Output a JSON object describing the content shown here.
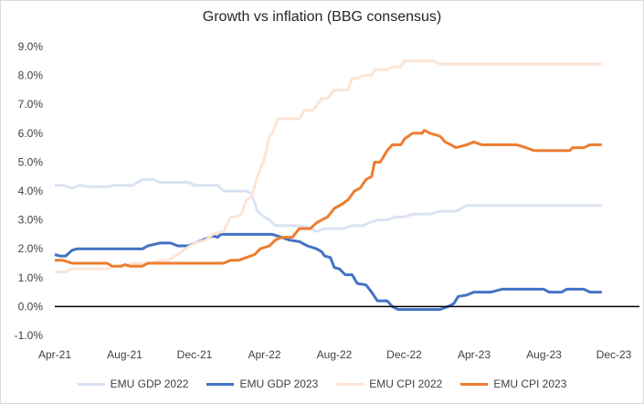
{
  "chart_data": {
    "type": "line",
    "title": "Growth vs inflation (BBG consensus)",
    "xlabel": "",
    "ylabel": "",
    "x_ticks": [
      "Apr-21",
      "Aug-21",
      "Dec-21",
      "Apr-22",
      "Aug-22",
      "Dec-22",
      "Apr-23",
      "Aug-23",
      "Dec-23"
    ],
    "y_ticks": [
      "-1.0%",
      "0.0%",
      "1.0%",
      "2.0%",
      "3.0%",
      "4.0%",
      "5.0%",
      "6.0%",
      "7.0%",
      "8.0%",
      "9.0%"
    ],
    "ylim": [
      -1.0,
      9.0
    ],
    "xlim": [
      "2021-04-01",
      "2023-12-01"
    ],
    "grid": false,
    "legend_position": "bottom",
    "series": [
      {
        "name": "EMU GDP 2022",
        "color": "#dae3f3",
        "points": [
          [
            "2021-04-01",
            4.2
          ],
          [
            "2021-04-15",
            4.2
          ],
          [
            "2021-05-01",
            4.1
          ],
          [
            "2021-05-15",
            4.2
          ],
          [
            "2021-06-01",
            4.15
          ],
          [
            "2021-07-01",
            4.15
          ],
          [
            "2021-07-15",
            4.2
          ],
          [
            "2021-08-15",
            4.2
          ],
          [
            "2021-09-01",
            4.4
          ],
          [
            "2021-09-20",
            4.4
          ],
          [
            "2021-10-01",
            4.3
          ],
          [
            "2021-11-01",
            4.3
          ],
          [
            "2021-11-20",
            4.3
          ],
          [
            "2021-12-01",
            4.2
          ],
          [
            "2022-01-01",
            4.2
          ],
          [
            "2022-01-10",
            4.2
          ],
          [
            "2022-01-20",
            4.0
          ],
          [
            "2022-03-01",
            4.0
          ],
          [
            "2022-03-10",
            3.9
          ],
          [
            "2022-03-20",
            3.3
          ],
          [
            "2022-04-01",
            3.1
          ],
          [
            "2022-04-10",
            3.0
          ],
          [
            "2022-04-20",
            2.8
          ],
          [
            "2022-06-01",
            2.8
          ],
          [
            "2022-06-15",
            2.75
          ],
          [
            "2022-07-01",
            2.6
          ],
          [
            "2022-07-15",
            2.7
          ],
          [
            "2022-08-15",
            2.7
          ],
          [
            "2022-09-01",
            2.8
          ],
          [
            "2022-09-20",
            2.8
          ],
          [
            "2022-10-01",
            2.9
          ],
          [
            "2022-10-15",
            3.0
          ],
          [
            "2022-11-01",
            3.0
          ],
          [
            "2022-11-15",
            3.1
          ],
          [
            "2022-12-01",
            3.1
          ],
          [
            "2022-12-15",
            3.2
          ],
          [
            "2023-01-15",
            3.2
          ],
          [
            "2023-02-01",
            3.3
          ],
          [
            "2023-03-01",
            3.3
          ],
          [
            "2023-03-20",
            3.5
          ],
          [
            "2023-11-10",
            3.5
          ]
        ]
      },
      {
        "name": "EMU GDP 2023",
        "color": "#4472c4",
        "points": [
          [
            "2021-04-01",
            1.8
          ],
          [
            "2021-04-10",
            1.75
          ],
          [
            "2021-04-20",
            1.75
          ],
          [
            "2021-05-01",
            1.95
          ],
          [
            "2021-05-10",
            2.0
          ],
          [
            "2021-09-01",
            2.0
          ],
          [
            "2021-09-10",
            2.1
          ],
          [
            "2021-09-20",
            2.15
          ],
          [
            "2021-10-01",
            2.2
          ],
          [
            "2021-10-20",
            2.2
          ],
          [
            "2021-11-01",
            2.1
          ],
          [
            "2021-11-20",
            2.1
          ],
          [
            "2021-12-01",
            2.2
          ],
          [
            "2021-12-15",
            2.3
          ],
          [
            "2022-01-01",
            2.45
          ],
          [
            "2022-01-10",
            2.4
          ],
          [
            "2022-01-15",
            2.5
          ],
          [
            "2022-04-15",
            2.5
          ],
          [
            "2022-05-01",
            2.4
          ],
          [
            "2022-05-15",
            2.3
          ],
          [
            "2022-06-01",
            2.25
          ],
          [
            "2022-06-15",
            2.1
          ],
          [
            "2022-07-01",
            2.0
          ],
          [
            "2022-07-10",
            1.9
          ],
          [
            "2022-07-15",
            1.75
          ],
          [
            "2022-07-25",
            1.7
          ],
          [
            "2022-08-01",
            1.35
          ],
          [
            "2022-08-10",
            1.3
          ],
          [
            "2022-08-20",
            1.1
          ],
          [
            "2022-09-01",
            1.1
          ],
          [
            "2022-09-10",
            0.8
          ],
          [
            "2022-09-25",
            0.75
          ],
          [
            "2022-10-05",
            0.5
          ],
          [
            "2022-10-15",
            0.2
          ],
          [
            "2022-11-01",
            0.2
          ],
          [
            "2022-11-10",
            0.0
          ],
          [
            "2022-11-20",
            -0.1
          ],
          [
            "2023-02-01",
            -0.1
          ],
          [
            "2023-02-15",
            0.0
          ],
          [
            "2023-02-25",
            0.1
          ],
          [
            "2023-03-05",
            0.35
          ],
          [
            "2023-03-20",
            0.4
          ],
          [
            "2023-04-01",
            0.5
          ],
          [
            "2023-05-01",
            0.5
          ],
          [
            "2023-05-20",
            0.6
          ],
          [
            "2023-08-01",
            0.6
          ],
          [
            "2023-08-10",
            0.5
          ],
          [
            "2023-09-01",
            0.5
          ],
          [
            "2023-09-10",
            0.6
          ],
          [
            "2023-10-10",
            0.6
          ],
          [
            "2023-10-20",
            0.5
          ],
          [
            "2023-11-10",
            0.5
          ]
        ]
      },
      {
        "name": "EMU CPI 2022",
        "color": "#fbe5d6",
        "points": [
          [
            "2021-04-01",
            1.2
          ],
          [
            "2021-04-20",
            1.2
          ],
          [
            "2021-05-01",
            1.3
          ],
          [
            "2021-07-01",
            1.3
          ],
          [
            "2021-07-15",
            1.4
          ],
          [
            "2021-08-01",
            1.4
          ],
          [
            "2021-08-15",
            1.5
          ],
          [
            "2021-09-15",
            1.5
          ],
          [
            "2021-10-01",
            1.6
          ],
          [
            "2021-10-15",
            1.6
          ],
          [
            "2021-11-01",
            1.8
          ],
          [
            "2021-11-15",
            2.0
          ],
          [
            "2021-12-01",
            2.2
          ],
          [
            "2021-12-20",
            2.3
          ],
          [
            "2022-01-01",
            2.5
          ],
          [
            "2022-01-20",
            2.6
          ],
          [
            "2022-02-01",
            3.1
          ],
          [
            "2022-02-10",
            3.1
          ],
          [
            "2022-02-20",
            3.2
          ],
          [
            "2022-03-01",
            3.7
          ],
          [
            "2022-03-10",
            3.8
          ],
          [
            "2022-03-20",
            4.5
          ],
          [
            "2022-04-01",
            5.1
          ],
          [
            "2022-04-10",
            5.9
          ],
          [
            "2022-04-15",
            6.0
          ],
          [
            "2022-04-25",
            6.5
          ],
          [
            "2022-06-01",
            6.5
          ],
          [
            "2022-06-10",
            6.8
          ],
          [
            "2022-06-25",
            6.8
          ],
          [
            "2022-07-10",
            7.2
          ],
          [
            "2022-07-20",
            7.2
          ],
          [
            "2022-08-01",
            7.5
          ],
          [
            "2022-08-25",
            7.5
          ],
          [
            "2022-09-01",
            7.9
          ],
          [
            "2022-09-10",
            7.9
          ],
          [
            "2022-09-20",
            8.0
          ],
          [
            "2022-10-05",
            8.0
          ],
          [
            "2022-10-10",
            8.2
          ],
          [
            "2022-11-01",
            8.2
          ],
          [
            "2022-11-10",
            8.3
          ],
          [
            "2022-11-25",
            8.3
          ],
          [
            "2022-12-01",
            8.5
          ],
          [
            "2023-01-20",
            8.5
          ],
          [
            "2023-02-01",
            8.4
          ],
          [
            "2023-11-10",
            8.4
          ]
        ]
      },
      {
        "name": "EMU CPI 2023",
        "color": "#ed7d31",
        "points": [
          [
            "2021-04-01",
            1.6
          ],
          [
            "2021-04-15",
            1.6
          ],
          [
            "2021-05-01",
            1.5
          ],
          [
            "2021-07-01",
            1.5
          ],
          [
            "2021-07-10",
            1.4
          ],
          [
            "2021-07-25",
            1.4
          ],
          [
            "2021-08-01",
            1.45
          ],
          [
            "2021-08-10",
            1.4
          ],
          [
            "2021-09-01",
            1.4
          ],
          [
            "2021-09-10",
            1.5
          ],
          [
            "2022-01-20",
            1.5
          ],
          [
            "2022-02-01",
            1.6
          ],
          [
            "2022-02-15",
            1.6
          ],
          [
            "2022-03-01",
            1.7
          ],
          [
            "2022-03-15",
            1.8
          ],
          [
            "2022-03-25",
            2.0
          ],
          [
            "2022-04-10",
            2.1
          ],
          [
            "2022-04-20",
            2.3
          ],
          [
            "2022-05-01",
            2.4
          ],
          [
            "2022-05-20",
            2.4
          ],
          [
            "2022-06-01",
            2.7
          ],
          [
            "2022-06-20",
            2.7
          ],
          [
            "2022-07-01",
            2.9
          ],
          [
            "2022-07-10",
            3.0
          ],
          [
            "2022-07-20",
            3.1
          ],
          [
            "2022-08-01",
            3.4
          ],
          [
            "2022-08-15",
            3.55
          ],
          [
            "2022-08-25",
            3.7
          ],
          [
            "2022-09-05",
            4.0
          ],
          [
            "2022-09-15",
            4.1
          ],
          [
            "2022-09-25",
            4.4
          ],
          [
            "2022-10-05",
            4.5
          ],
          [
            "2022-10-10",
            5.0
          ],
          [
            "2022-10-20",
            5.0
          ],
          [
            "2022-11-01",
            5.4
          ],
          [
            "2022-11-10",
            5.6
          ],
          [
            "2022-11-25",
            5.6
          ],
          [
            "2022-12-01",
            5.8
          ],
          [
            "2022-12-15",
            6.0
          ],
          [
            "2023-01-01",
            6.0
          ],
          [
            "2023-01-05",
            6.1
          ],
          [
            "2023-01-15",
            6.0
          ],
          [
            "2023-02-01",
            5.9
          ],
          [
            "2023-02-10",
            5.7
          ],
          [
            "2023-02-20",
            5.6
          ],
          [
            "2023-03-01",
            5.5
          ],
          [
            "2023-03-20",
            5.6
          ],
          [
            "2023-04-01",
            5.7
          ],
          [
            "2023-04-15",
            5.6
          ],
          [
            "2023-06-15",
            5.6
          ],
          [
            "2023-07-01",
            5.5
          ],
          [
            "2023-07-15",
            5.4
          ],
          [
            "2023-09-15",
            5.4
          ],
          [
            "2023-09-20",
            5.5
          ],
          [
            "2023-10-10",
            5.5
          ],
          [
            "2023-10-20",
            5.6
          ],
          [
            "2023-11-10",
            5.6
          ]
        ]
      }
    ]
  }
}
